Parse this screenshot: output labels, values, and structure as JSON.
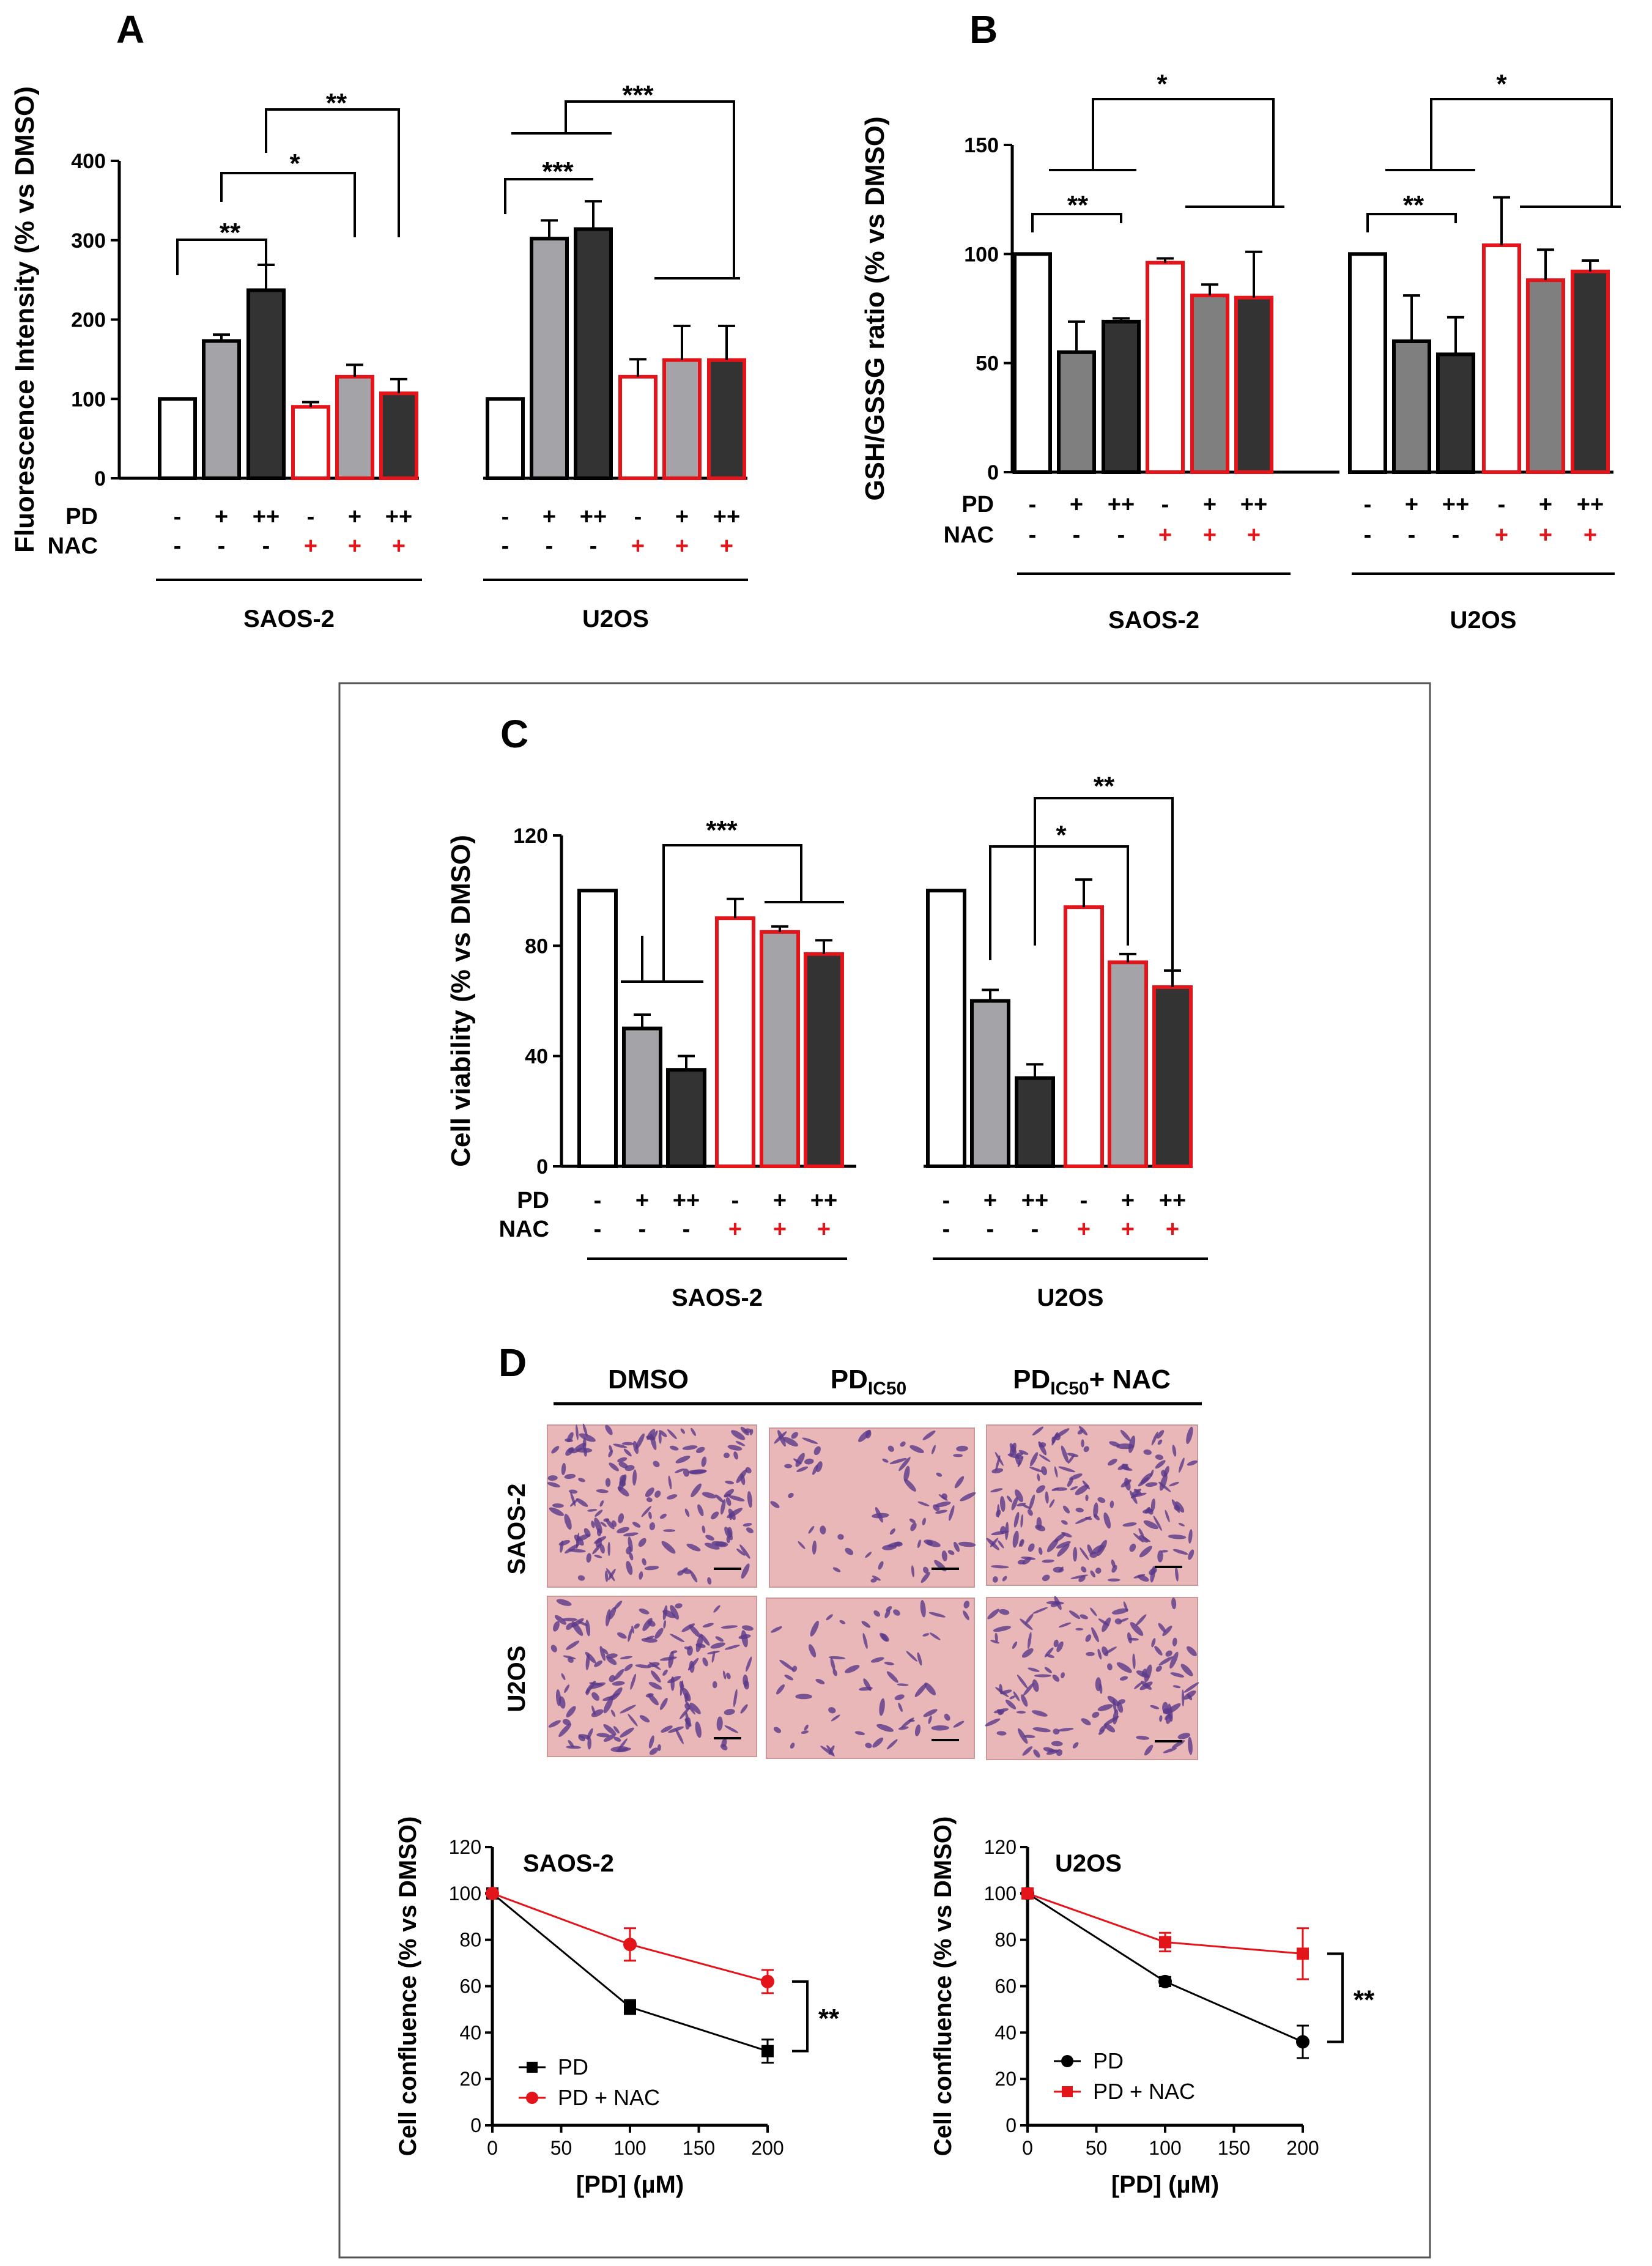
{
  "colors": {
    "white_fill": "#ffffff",
    "light_gray": "#a3a3a8",
    "medium_gray": "#7f7f7f",
    "dark_gray": "#333333",
    "red": "#e4141b",
    "black": "#000000",
    "micro_bg": "#e9b7b8",
    "cell_purple": "#5a3a8a"
  },
  "condition_symbols": {
    "pd": [
      "-",
      "+",
      "++",
      "-",
      "+",
      "++"
    ],
    "nac": [
      "-",
      "-",
      "-",
      "+",
      "+",
      "+"
    ]
  },
  "chart_data": [
    {
      "id": "A",
      "type": "bar",
      "panel_label": "A",
      "ylabel": "Fluorescence Intensity (% vs DMSO)",
      "ylim": [
        0,
        400
      ],
      "yticks": [
        "0",
        "100",
        "200",
        "300",
        "400"
      ],
      "row_labels": [
        "PD",
        "NAC"
      ],
      "groups": [
        {
          "name": "SAOS-2",
          "values": [
            100,
            173,
            237,
            90,
            128,
            107
          ],
          "errors": [
            0,
            8,
            32,
            6,
            15,
            18
          ]
        },
        {
          "name": "U2OS",
          "values": [
            100,
            302,
            314,
            128,
            149,
            149
          ],
          "errors": [
            0,
            23,
            35,
            22,
            43,
            43
          ]
        }
      ],
      "significance": [
        "**",
        "*",
        "**",
        "***",
        "***"
      ]
    },
    {
      "id": "B",
      "type": "bar",
      "panel_label": "B",
      "ylabel": "GSH/GSSG ratio (% vs DMSO)",
      "ylim": [
        0,
        150
      ],
      "yticks": [
        "0",
        "50",
        "100",
        "150"
      ],
      "row_labels": [
        "PD",
        "NAC"
      ],
      "groups": [
        {
          "name": "SAOS-2",
          "values": [
            100,
            55,
            69,
            96,
            81,
            80
          ],
          "errors": [
            0,
            14,
            1.5,
            2,
            5,
            21
          ]
        },
        {
          "name": "U2OS",
          "values": [
            100,
            60,
            54,
            104,
            88,
            92
          ],
          "errors": [
            0,
            21,
            17,
            22,
            14,
            5
          ]
        }
      ],
      "significance": [
        "**",
        "*",
        "**",
        "*"
      ]
    },
    {
      "id": "C",
      "type": "bar",
      "panel_label": "C",
      "ylabel": "Cell viability (% vs DMSO)",
      "ylim": [
        0,
        120
      ],
      "yticks": [
        "0",
        "40",
        "80",
        "120"
      ],
      "row_labels": [
        "PD",
        "NAC"
      ],
      "groups": [
        {
          "name": "SAOS-2",
          "values": [
            100,
            50,
            35,
            90,
            85,
            77
          ],
          "errors": [
            0,
            5,
            5,
            7,
            2,
            5
          ]
        },
        {
          "name": "U2OS",
          "values": [
            100,
            60,
            32,
            94,
            74,
            65
          ],
          "errors": [
            0,
            4,
            5,
            10,
            3,
            6
          ]
        }
      ],
      "significance": [
        "***",
        "*",
        "**"
      ]
    },
    {
      "id": "D-SAOS",
      "type": "line",
      "title": "SAOS-2",
      "xlabel": "[PD] (µM)",
      "ylabel": "Cell confluence (% vs DMSO)",
      "xlim": [
        0,
        200
      ],
      "ylim": [
        0,
        120
      ],
      "xticks": [
        "0",
        "50",
        "100",
        "150",
        "200"
      ],
      "yticks": [
        "0",
        "20",
        "40",
        "60",
        "80",
        "100",
        "120"
      ],
      "x": [
        0,
        100,
        200
      ],
      "series": [
        {
          "name": "PD",
          "marker": "square",
          "color": "#000000",
          "values": [
            100,
            51,
            32
          ],
          "errors": [
            0,
            3,
            5
          ]
        },
        {
          "name": "PD + NAC",
          "marker": "circle",
          "color": "#e4141b",
          "values": [
            100,
            78,
            62
          ],
          "errors": [
            0,
            7,
            5
          ]
        }
      ],
      "significance": "**"
    },
    {
      "id": "D-U2OS",
      "type": "line",
      "title": "U2OS",
      "xlabel": "[PD] (µM)",
      "ylabel": "Cell confluence (% vs DMSO)",
      "xlim": [
        0,
        200
      ],
      "ylim": [
        0,
        120
      ],
      "xticks": [
        "0",
        "50",
        "100",
        "150",
        "200"
      ],
      "yticks": [
        "0",
        "20",
        "40",
        "60",
        "80",
        "100",
        "120"
      ],
      "x": [
        0,
        100,
        200
      ],
      "series": [
        {
          "name": "PD",
          "marker": "circle",
          "color": "#000000",
          "values": [
            100,
            62,
            36
          ],
          "errors": [
            0,
            2,
            7
          ]
        },
        {
          "name": "PD + NAC",
          "marker": "square",
          "color": "#e4141b",
          "values": [
            100,
            79,
            74
          ],
          "errors": [
            0,
            4,
            11
          ]
        }
      ],
      "significance": "**"
    }
  ],
  "panel_d": {
    "label": "D",
    "columns": [
      "DMSO",
      "PD",
      "PD",
      "+ NAC"
    ],
    "col_subscripts": [
      "IC50",
      "IC50"
    ],
    "rows": [
      "SAOS-2",
      "U2OS"
    ]
  }
}
